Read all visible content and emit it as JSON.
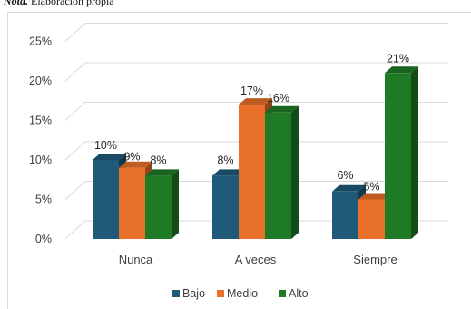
{
  "note": {
    "label": "Nota.",
    "text": "Elaboración propia"
  },
  "chart_data": {
    "type": "bar",
    "style": "3d-clustered-column",
    "categories": [
      "Nunca",
      "A veces",
      "Siempre"
    ],
    "series": [
      {
        "name": "Bajo",
        "color": "#1f5a7a",
        "values": [
          10,
          8,
          6
        ],
        "labels": [
          "10%",
          "8%",
          "6%"
        ]
      },
      {
        "name": "Medio",
        "color": "#e8702a",
        "values": [
          9,
          17,
          5
        ],
        "labels": [
          "9%",
          "17%",
          "5%"
        ]
      },
      {
        "name": "Alto",
        "color": "#1e7a24",
        "values": [
          8,
          16,
          21
        ],
        "labels": [
          "8%",
          "16%",
          "21%"
        ]
      }
    ],
    "yticks": [
      "0%",
      "5%",
      "10%",
      "15%",
      "20%",
      "25%"
    ],
    "ylim": [
      0,
      25
    ],
    "grid": true,
    "legend": "bottom"
  }
}
